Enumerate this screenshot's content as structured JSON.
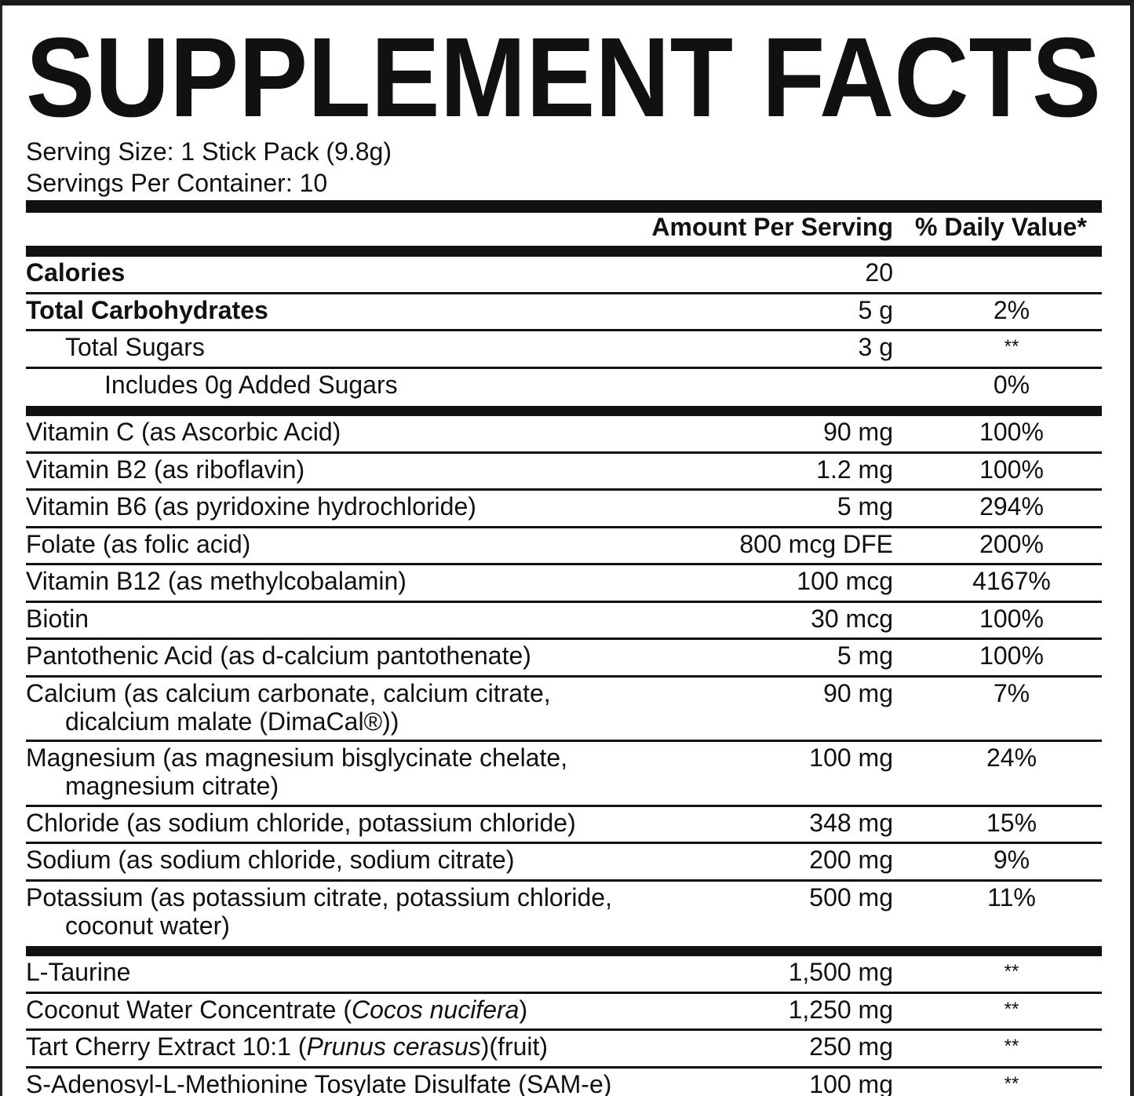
{
  "title": "SUPPLEMENT FACTS",
  "serving": [
    "Serving Size: 1 Stick Pack (9.8g)",
    "Servings Per Container: 10"
  ],
  "columns": {
    "amount": "Amount Per Serving",
    "dv": "% Daily Value*"
  },
  "sections": [
    {
      "rows": [
        {
          "name": "Calories",
          "bold": true,
          "amount": "20"
        },
        {
          "name": "Total Carbohydrates",
          "bold": true,
          "amount": "5 g",
          "dv": "2%"
        },
        {
          "name": "Total Sugars",
          "indent": 1,
          "amount": "3 g",
          "dv": "**"
        },
        {
          "name": "Includes 0g Added Sugars",
          "indent": 2,
          "dv": "0%"
        }
      ]
    },
    {
      "rows": [
        {
          "name": "Vitamin C (as Ascorbic Acid)",
          "amount": "90 mg",
          "dv": "100%"
        },
        {
          "name": "Vitamin B2 (as riboflavin)",
          "amount": "1.2 mg",
          "dv": "100%"
        },
        {
          "name": "Vitamin B6 (as pyridoxine hydrochloride)",
          "amount": "5 mg",
          "dv": "294%"
        },
        {
          "name": "Folate (as folic acid)",
          "amount": "800 mcg DFE",
          "dv": "200%"
        },
        {
          "name": "Vitamin B12 (as methylcobalamin)",
          "amount": "100 mcg",
          "dv": "4167%"
        },
        {
          "name": "Biotin",
          "amount": "30 mcg",
          "dv": "100%"
        },
        {
          "name": "Pantothenic Acid (as d-calcium pantothenate)",
          "amount": "5 mg",
          "dv": "100%"
        },
        {
          "name_lines": [
            "Calcium (as calcium carbonate, calcium citrate,",
            "dicalcium malate (DimaCal®))"
          ],
          "amount": "90 mg",
          "dv": "7%"
        },
        {
          "name_lines": [
            "Magnesium (as magnesium bisglycinate chelate,",
            "magnesium citrate)"
          ],
          "amount": "100 mg",
          "dv": "24%"
        },
        {
          "name": "Chloride (as sodium chloride, potassium chloride)",
          "amount": "348 mg",
          "dv": "15%"
        },
        {
          "name": "Sodium (as sodium chloride, sodium citrate)",
          "amount": "200 mg",
          "dv": "9%"
        },
        {
          "name_lines": [
            "Potassium (as potassium citrate, potassium chloride,",
            "coconut water)"
          ],
          "amount": "500 mg",
          "dv": "11%"
        }
      ]
    },
    {
      "rows": [
        {
          "name": "L-Taurine",
          "amount": "1,500 mg",
          "dv": "**"
        },
        {
          "name_parts": [
            {
              "text": "Coconut Water Concentrate ("
            },
            {
              "text": "Cocos nucifera",
              "italic": true
            },
            {
              "text": ")"
            }
          ],
          "amount": "1,250 mg",
          "dv": "**"
        },
        {
          "name_parts": [
            {
              "text": "Tart Cherry Extract 10:1 ("
            },
            {
              "text": "Prunus cerasus",
              "italic": true
            },
            {
              "text": ")(fruit)"
            }
          ],
          "amount": "250 mg",
          "dv": "**"
        },
        {
          "name": "S-Adenosyl-L-Methionine Tosylate Disulfate (SAM-e)",
          "amount": "100 mg",
          "dv": "**"
        }
      ]
    }
  ]
}
